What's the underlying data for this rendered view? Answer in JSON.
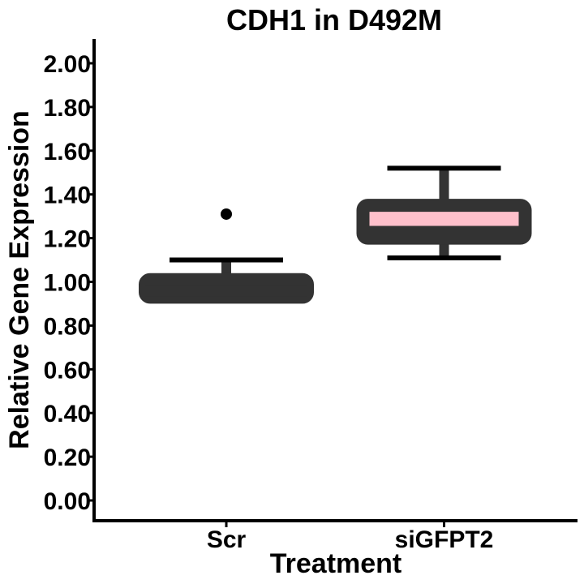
{
  "chart_data": {
    "type": "box",
    "title": "CDH1 in D492M",
    "xlabel": "Treatment",
    "ylabel": "Relative Gene Expression",
    "ylim": [
      0,
      2.0
    ],
    "y_ticks": [
      "0.00",
      "0.20",
      "0.40",
      "0.60",
      "0.80",
      "1.00",
      "1.20",
      "1.40",
      "1.60",
      "1.80",
      "2.00"
    ],
    "categories": [
      "Scr",
      "siGFPT2"
    ],
    "boxes": [
      {
        "category": "Scr",
        "fill": "#ffffff",
        "whisker_low": 0.93,
        "q1": 0.93,
        "median": 0.96,
        "q3": 1.01,
        "whisker_high": 1.1,
        "outliers": [
          1.31
        ]
      },
      {
        "category": "siGFPT2",
        "fill": "#ffc0cb",
        "whisker_low": 1.11,
        "q1": 1.2,
        "median": 1.23,
        "q3": 1.35,
        "whisker_high": 1.52,
        "outliers": []
      }
    ],
    "grid": false,
    "legend": "none",
    "colors": {
      "outline": "#333333",
      "axis": "#000000"
    }
  }
}
